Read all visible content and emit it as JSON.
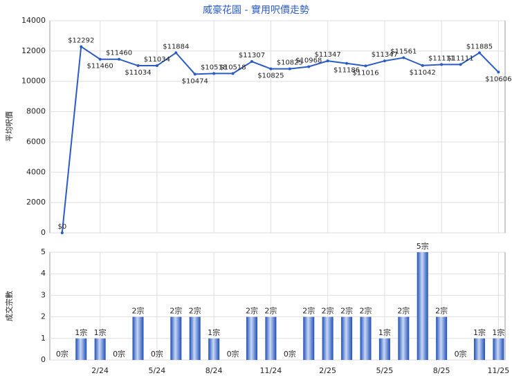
{
  "chart_data": [
    {
      "type": "line",
      "title": "威豪花園 - 實用呎價走勢",
      "y_label": "平均呎價",
      "categories": [
        null,
        null,
        "2/24",
        null,
        null,
        "5/24",
        null,
        null,
        "8/24",
        null,
        null,
        "11/24",
        null,
        null,
        "2/25",
        null,
        null,
        "5/25",
        null,
        null,
        "8/25",
        null,
        null,
        "11/25"
      ],
      "series": [
        {
          "name": "平均呎價",
          "color": "#2a5bc4",
          "values": [
            0,
            12292,
            11460,
            11460,
            11034,
            11034,
            11884,
            10474,
            10518,
            10518,
            11307,
            10825,
            10825,
            10968,
            11347,
            11186,
            11016,
            11347,
            11561,
            11042,
            11111,
            11111,
            11885,
            10606
          ],
          "value_labels": [
            "$0",
            "$12292",
            "$11460",
            "$11460",
            "$11034",
            "$11034",
            "$11884",
            "$10474",
            "$10518",
            "$10518",
            "$11307",
            "$10825",
            "$10825",
            "$10968",
            "$11347",
            "$11186",
            "$11016",
            "$11347",
            "$11561",
            "$11042",
            "$11111",
            "$11111",
            "$11885",
            "$10606"
          ]
        }
      ],
      "ylim": [
        0,
        14000
      ],
      "yticks": [
        0,
        2000,
        4000,
        6000,
        8000,
        10000,
        12000,
        14000
      ],
      "grid": true
    },
    {
      "type": "bar",
      "y_label": "成交宗數",
      "categories": [
        null,
        null,
        "2/24",
        null,
        null,
        "5/24",
        null,
        null,
        "8/24",
        null,
        null,
        "11/24",
        null,
        null,
        "2/25",
        null,
        null,
        "5/25",
        null,
        null,
        "8/25",
        null,
        null,
        "11/25"
      ],
      "series": [
        {
          "name": "成交宗數",
          "color": "#2a5bc4",
          "values": [
            0,
            1,
            1,
            0,
            2,
            0,
            2,
            2,
            1,
            0,
            2,
            2,
            0,
            2,
            2,
            2,
            2,
            1,
            2,
            5,
            2,
            0,
            1,
            1
          ],
          "value_labels": [
            "0宗",
            "1宗",
            "1宗",
            "0宗",
            "2宗",
            "0宗",
            "2宗",
            "2宗",
            "1宗",
            "0宗",
            "2宗",
            "2宗",
            "0宗",
            "2宗",
            "2宗",
            "2宗",
            "2宗",
            "1宗",
            "2宗",
            "5宗",
            "2宗",
            "0宗",
            "1宗",
            "1宗"
          ]
        }
      ],
      "ylim": [
        0,
        5
      ],
      "yticks": [
        0,
        1,
        2,
        3,
        4,
        5
      ],
      "grid": true
    }
  ]
}
